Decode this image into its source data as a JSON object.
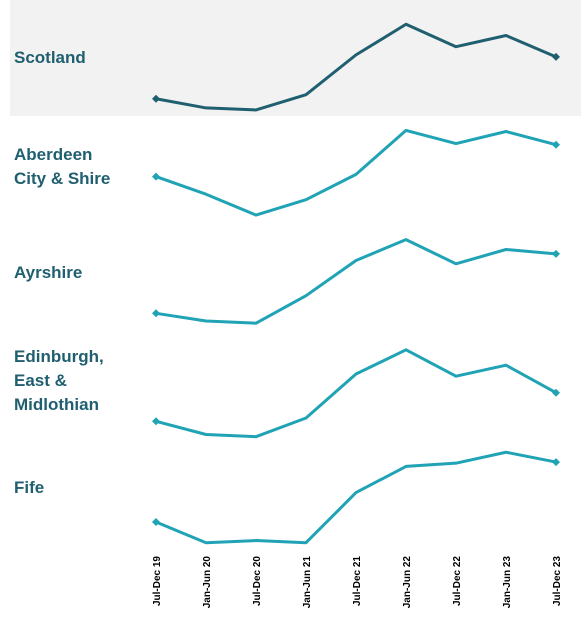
{
  "colors": {
    "scotland_line": "#1f5f70",
    "region_line": "#1fa3b5",
    "label_text": "#1f5f70",
    "highlight_bg": "#f2f2f2"
  },
  "chart_data": {
    "type": "line",
    "layout": "small-multiples",
    "categories": [
      "Jul-Dec 19",
      "Jan-Jun 20",
      "Jul-Dec 20",
      "Jan-Jun 21",
      "Jul-Dec 21",
      "Jan-Jun 22",
      "Jul-Dec 22",
      "Jan-Jun 23",
      "Jul-Dec 23"
    ],
    "value_axis": "none",
    "note": "",
    "series": [
      {
        "name": "Scotland",
        "highlight": true,
        "values": [
          0.13,
          0.04,
          0.02,
          0.17,
          0.56,
          0.86,
          0.64,
          0.75,
          0.54
        ]
      },
      {
        "name": "Aberdeen City & Shire",
        "highlight": false,
        "values": [
          0.44,
          0.28,
          0.09,
          0.23,
          0.46,
          0.86,
          0.74,
          0.85,
          0.73
        ]
      },
      {
        "name": "Ayrshire",
        "highlight": false,
        "values": [
          0.17,
          0.1,
          0.08,
          0.33,
          0.65,
          0.84,
          0.62,
          0.75,
          0.71
        ]
      },
      {
        "name": "Edinburgh, East & Midlothian",
        "highlight": false,
        "values": [
          0.17,
          0.05,
          0.03,
          0.2,
          0.6,
          0.82,
          0.58,
          0.68,
          0.43
        ]
      },
      {
        "name": "Fife",
        "highlight": false,
        "values": [
          0.22,
          0.03,
          0.05,
          0.03,
          0.49,
          0.73,
          0.76,
          0.86,
          0.77
        ]
      }
    ]
  }
}
